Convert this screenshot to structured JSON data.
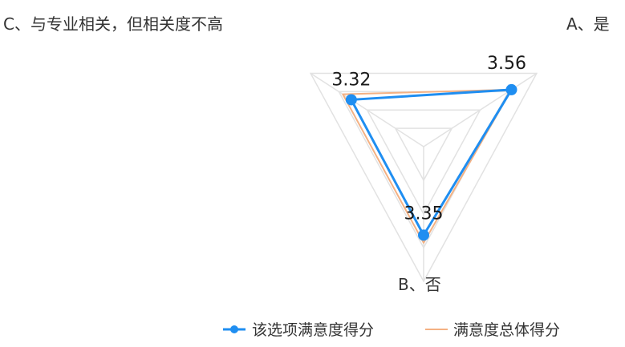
{
  "chart_data": {
    "type": "radar",
    "axes": [
      "A、是",
      "B、否",
      "C、与专业相关，但相关度不高"
    ],
    "series": [
      {
        "name": "该选项满意度得分",
        "values": [
          3.56,
          3.35,
          3.32
        ],
        "data_labels": [
          "3.56",
          "3.35",
          "3.32"
        ],
        "color": "#1f8ef1",
        "marker": "circle"
      },
      {
        "name": "满意度总体得分",
        "values": [
          3.56,
          3.45,
          3.45
        ],
        "color": "#f4b183",
        "marker": "none"
      }
    ],
    "grid": true,
    "gridlines": 4,
    "legend_position": "bottom-right"
  }
}
